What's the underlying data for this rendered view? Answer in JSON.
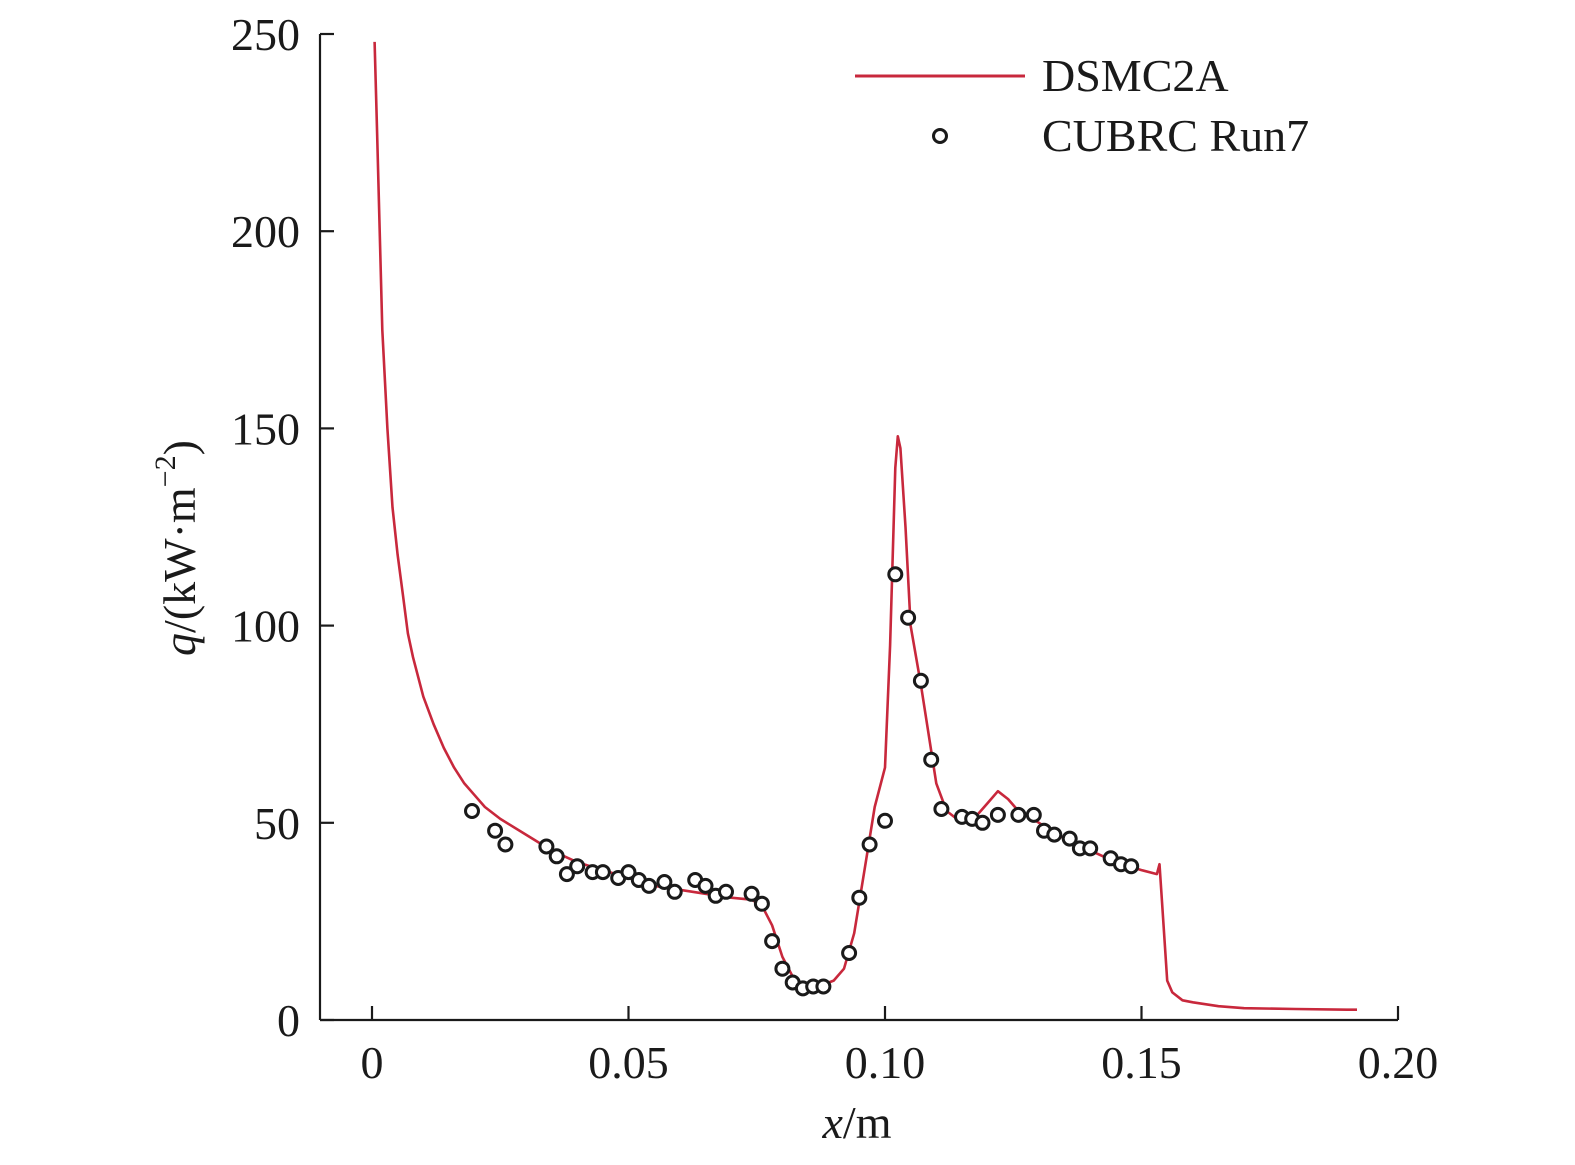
{
  "chart_data": {
    "type": "line",
    "xlabel_var": "x",
    "xlabel_unit": "/m",
    "ylabel_var": "q",
    "ylabel_unit": "/(kW·m",
    "ylabel_exp": "−2",
    "ylabel_close": ")",
    "xlim": [
      -0.01,
      0.2
    ],
    "ylim": [
      0,
      250
    ],
    "xticks": [
      0,
      0.05,
      0.1,
      0.15,
      0.2
    ],
    "xtick_labels": [
      "0",
      "0.05",
      "0.10",
      "0.15",
      "0.20"
    ],
    "yticks": [
      0,
      50,
      100,
      150,
      200,
      250
    ],
    "ytick_labels": [
      "0",
      "50",
      "100",
      "150",
      "200",
      "250"
    ],
    "legend_position": "top-right",
    "grid": false,
    "series": [
      {
        "name": "DSMC2A",
        "kind": "line",
        "color": "#c8283c",
        "x": [
          0.0005,
          0.001,
          0.0015,
          0.002,
          0.003,
          0.004,
          0.005,
          0.006,
          0.007,
          0.008,
          0.01,
          0.012,
          0.014,
          0.016,
          0.018,
          0.02,
          0.022,
          0.025,
          0.03,
          0.035,
          0.04,
          0.045,
          0.05,
          0.055,
          0.06,
          0.065,
          0.07,
          0.074,
          0.076,
          0.078,
          0.08,
          0.082,
          0.084,
          0.086,
          0.088,
          0.09,
          0.092,
          0.094,
          0.096,
          0.098,
          0.1,
          0.101,
          0.102,
          0.1025,
          0.103,
          0.104,
          0.105,
          0.107,
          0.11,
          0.112,
          0.114,
          0.116,
          0.118,
          0.12,
          0.122,
          0.124,
          0.126,
          0.13,
          0.135,
          0.14,
          0.145,
          0.15,
          0.153,
          0.1535,
          0.154,
          0.155,
          0.156,
          0.158,
          0.16,
          0.165,
          0.17,
          0.18,
          0.19,
          0.192
        ],
        "y": [
          248,
          225,
          200,
          175,
          150,
          130,
          118,
          108,
          98,
          92,
          82,
          75,
          69,
          64,
          60,
          57,
          54,
          51,
          47,
          43,
          40,
          38,
          36,
          34,
          33,
          32,
          31,
          30.5,
          29,
          24,
          16,
          11,
          9,
          8.5,
          9,
          10,
          13,
          22,
          38,
          54,
          64,
          95,
          140,
          148,
          145,
          125,
          100,
          85,
          60,
          53,
          51,
          51,
          52,
          55,
          58,
          56,
          53,
          50,
          46,
          43,
          40,
          38,
          37,
          39.5,
          30,
          10,
          7,
          5,
          4.5,
          3.5,
          3,
          2.8,
          2.6,
          2.6
        ]
      },
      {
        "name": "CUBRC Run7",
        "kind": "scatter",
        "color": "#1a1a1a",
        "x": [
          0.0195,
          0.024,
          0.026,
          0.034,
          0.036,
          0.038,
          0.04,
          0.043,
          0.045,
          0.048,
          0.05,
          0.052,
          0.054,
          0.057,
          0.059,
          0.063,
          0.065,
          0.067,
          0.069,
          0.074,
          0.076,
          0.078,
          0.08,
          0.082,
          0.084,
          0.086,
          0.088,
          0.093,
          0.095,
          0.097,
          0.1,
          0.102,
          0.1045,
          0.107,
          0.109,
          0.111,
          0.115,
          0.117,
          0.119,
          0.122,
          0.126,
          0.129,
          0.131,
          0.133,
          0.136,
          0.138,
          0.14,
          0.144,
          0.146,
          0.148
        ],
        "y": [
          53,
          48,
          44.5,
          44,
          41.5,
          37,
          39,
          37.5,
          37.5,
          36,
          37.5,
          35.5,
          34,
          35,
          32.5,
          35.5,
          34,
          31.5,
          32.5,
          32,
          29.5,
          20,
          13,
          9.5,
          8,
          8.5,
          8.5,
          17,
          31,
          44.5,
          50.5,
          113,
          102,
          86,
          66,
          53.5,
          51.5,
          51,
          50,
          52,
          52,
          52,
          48,
          47,
          46,
          43.5,
          43.5,
          41,
          39.5,
          39
        ]
      }
    ]
  }
}
